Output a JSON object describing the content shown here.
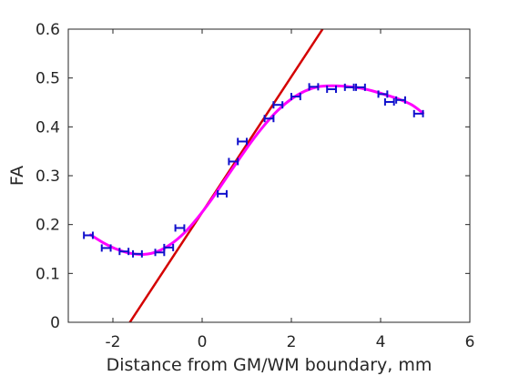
{
  "chart_data": {
    "type": "scatter",
    "xlabel": "Distance from GM/WM boundary, mm",
    "ylabel": "FA",
    "xlim": [
      -3,
      6
    ],
    "ylim": [
      0,
      0.6
    ],
    "x_ticks": [
      -2,
      0,
      2,
      4,
      6
    ],
    "x_tick_labels": [
      "-2",
      "0",
      "2",
      "4",
      "6"
    ],
    "y_ticks": [
      0,
      0.1,
      0.2,
      0.3,
      0.4,
      0.5,
      0.6
    ],
    "y_tick_labels": [
      "0",
      "0.1",
      "0.2",
      "0.3",
      "0.4",
      "0.5",
      "0.6"
    ],
    "grid": false,
    "box": true,
    "colors": {
      "points": "#1010cc",
      "fit_line": "#d40000",
      "smooth_curve": "#ff00ff",
      "axes": "#262626"
    },
    "series": [
      {
        "kind": "points-with-horizontal-errorbars",
        "points": [
          {
            "x": -2.55,
            "y": 0.178,
            "xerr": 0.1
          },
          {
            "x": -2.15,
            "y": 0.152,
            "xerr": 0.1
          },
          {
            "x": -1.75,
            "y": 0.145,
            "xerr": 0.1
          },
          {
            "x": -1.45,
            "y": 0.14,
            "xerr": 0.1
          },
          {
            "x": -0.95,
            "y": 0.143,
            "xerr": 0.1
          },
          {
            "x": -0.75,
            "y": 0.153,
            "xerr": 0.1
          },
          {
            "x": -0.5,
            "y": 0.193,
            "xerr": 0.1
          },
          {
            "x": 0.45,
            "y": 0.263,
            "xerr": 0.1
          },
          {
            "x": 0.7,
            "y": 0.329,
            "xerr": 0.1
          },
          {
            "x": 0.9,
            "y": 0.37,
            "xerr": 0.1
          },
          {
            "x": 1.5,
            "y": 0.417,
            "xerr": 0.1
          },
          {
            "x": 1.7,
            "y": 0.445,
            "xerr": 0.1
          },
          {
            "x": 2.1,
            "y": 0.462,
            "xerr": 0.1
          },
          {
            "x": 2.5,
            "y": 0.482,
            "xerr": 0.1
          },
          {
            "x": 2.9,
            "y": 0.477,
            "xerr": 0.1
          },
          {
            "x": 3.3,
            "y": 0.481,
            "xerr": 0.1
          },
          {
            "x": 3.55,
            "y": 0.481,
            "xerr": 0.1
          },
          {
            "x": 4.05,
            "y": 0.467,
            "xerr": 0.1
          },
          {
            "x": 4.2,
            "y": 0.451,
            "xerr": 0.1
          },
          {
            "x": 4.45,
            "y": 0.455,
            "xerr": 0.1
          },
          {
            "x": 4.85,
            "y": 0.427,
            "xerr": 0.1
          }
        ]
      },
      {
        "kind": "linear-fit",
        "x": [
          -1.62,
          2.7
        ],
        "y": [
          0.0,
          0.6
        ]
      },
      {
        "kind": "smooth-curve",
        "x": [
          -2.5,
          -2.2,
          -1.9,
          -1.6,
          -1.3,
          -1.0,
          -0.7,
          -0.4,
          -0.1,
          0.2,
          0.5,
          0.8,
          1.1,
          1.4,
          1.7,
          2.0,
          2.3,
          2.6,
          2.9,
          3.2,
          3.5,
          3.8,
          4.1,
          4.4,
          4.7,
          4.95
        ],
        "y": [
          0.179,
          0.162,
          0.149,
          0.141,
          0.139,
          0.145,
          0.16,
          0.183,
          0.214,
          0.25,
          0.29,
          0.33,
          0.369,
          0.404,
          0.434,
          0.457,
          0.473,
          0.482,
          0.484,
          0.483,
          0.48,
          0.474,
          0.466,
          0.457,
          0.445,
          0.428
        ]
      }
    ]
  }
}
